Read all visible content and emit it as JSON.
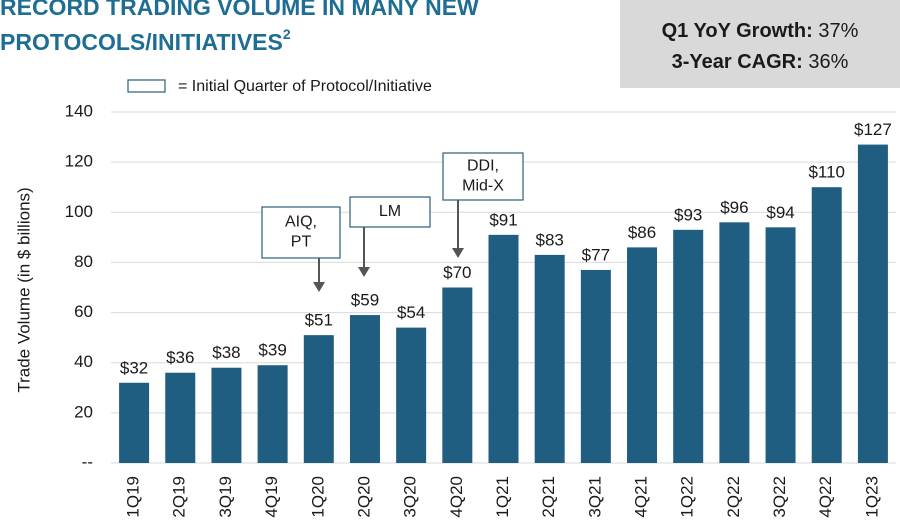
{
  "chart_data": {
    "type": "bar",
    "title": [
      "RECORD TRADING VOLUME IN MANY NEW",
      "PROTOCOLS/INITIATIVES"
    ],
    "title_footnote": "2",
    "stats": [
      {
        "label": "Q1 YoY Growth:",
        "value": "37%"
      },
      {
        "label": "3-Year CAGR:",
        "value": "36%"
      }
    ],
    "legend_text": "= Initial Quarter of Protocol/Initiative",
    "y_label": "Trade Volume (in $ billions)",
    "categories": [
      "1Q19",
      "2Q19",
      "3Q19",
      "4Q19",
      "1Q20",
      "2Q20",
      "3Q20",
      "4Q20",
      "1Q21",
      "2Q21",
      "3Q21",
      "4Q21",
      "1Q22",
      "2Q22",
      "3Q22",
      "4Q22",
      "1Q23"
    ],
    "values": [
      32,
      36,
      38,
      39,
      51,
      59,
      54,
      70,
      91,
      83,
      77,
      86,
      93,
      96,
      94,
      110,
      127
    ],
    "value_labels": [
      "$32",
      "$36",
      "$38",
      "$39",
      "$51",
      "$59",
      "$54",
      "$70",
      "$91",
      "$83",
      "$77",
      "$86",
      "$93",
      "$96",
      "$94",
      "$110",
      "$127"
    ],
    "color": "#1f5e80",
    "ylim": [
      0,
      140
    ],
    "yticks": [
      {
        "value": 0,
        "label": "--"
      },
      20,
      40,
      60,
      80,
      100,
      120,
      140
    ],
    "grid": true,
    "annotations": [
      {
        "lines": [
          "AIQ,",
          "PT"
        ]
      },
      {
        "lines": [
          "LM"
        ]
      },
      {
        "lines": [
          "DDI,",
          "Mid-X"
        ]
      }
    ]
  }
}
